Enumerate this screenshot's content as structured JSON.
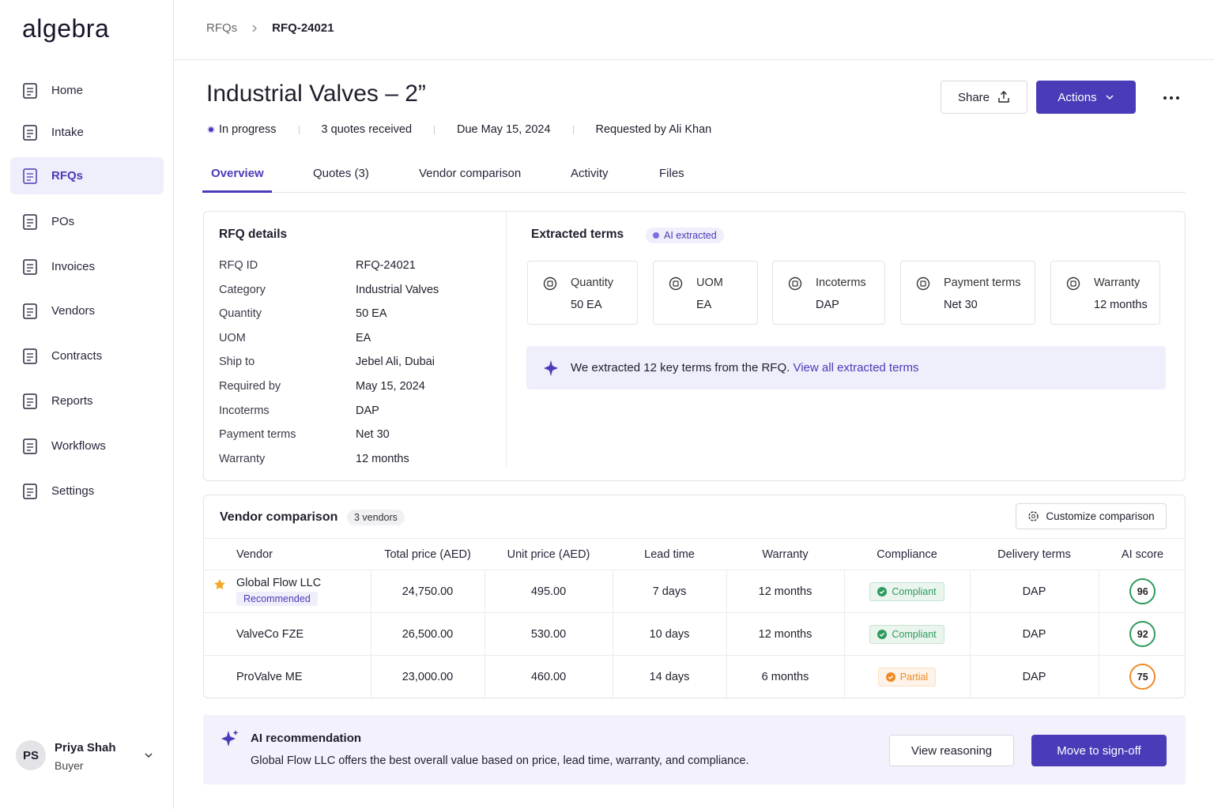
{
  "brand": "algebra",
  "nav": [
    "Home",
    "Intake",
    "RFQs",
    "POs",
    "Invoices",
    "Vendors",
    "Contracts",
    "Reports",
    "Workflows",
    "Settings"
  ],
  "user": {
    "initials": "PS",
    "name": "Priya Shah",
    "role": "Buyer"
  },
  "breadcrumb": [
    "RFQs",
    "RFQ-24021"
  ],
  "header": {
    "title": "Industrial Valves – 2”",
    "status": "In progress",
    "meta": [
      "3 quotes received",
      "Due May 15, 2024",
      "Requested by Ali Khan"
    ],
    "share": "Share",
    "actions": "Actions"
  },
  "tabs": [
    "Overview",
    "Quotes (3)",
    "Vendor comparison",
    "Activity",
    "Files"
  ],
  "rfq_details": {
    "title": "RFQ details",
    "rows": [
      [
        "RFQ ID",
        "RFQ-24021"
      ],
      [
        "Category",
        "Industrial Valves"
      ],
      [
        "Quantity",
        "50 EA"
      ],
      [
        "UOM",
        "EA"
      ],
      [
        "Ship to",
        "Jebel Ali, Dubai"
      ],
      [
        "Required by",
        "May 15, 2024"
      ],
      [
        "Incoterms",
        "DAP"
      ],
      [
        "Payment terms",
        "Net 30"
      ],
      [
        "Warranty",
        "12 months"
      ]
    ]
  },
  "extracted_terms": {
    "title": "Extracted terms",
    "badge": "AI extracted",
    "terms": [
      {
        "label": "Quantity",
        "value": "50 EA"
      },
      {
        "label": "UOM",
        "value": "EA"
      },
      {
        "label": "Incoterms",
        "value": "DAP"
      },
      {
        "label": "Payment terms",
        "value": "Net 30"
      },
      {
        "label": "Warranty",
        "value": "12 months"
      }
    ],
    "banner": {
      "text": "We extracted 12 key terms from the RFQ.",
      "link": "View all extracted terms"
    }
  },
  "vendor_comparison": {
    "title": "Vendor comparison",
    "count": "3 vendors",
    "button": "Customize comparison",
    "columns": [
      "Vendor",
      "Total price (AED)",
      "Unit price (AED)",
      "Lead time",
      "Warranty",
      "Compliance",
      "Delivery terms",
      "AI score"
    ],
    "rows": [
      {
        "cells": [
          "Global Flow LLC",
          "24,750.00",
          "495.00",
          "7 days",
          "12 months",
          "Compliant",
          "DAP",
          "96"
        ],
        "tag": "Recommended",
        "color": "#2e9a5b"
      },
      {
        "cells": [
          "ValveCo FZE",
          "26,500.00",
          "530.00",
          "10 days",
          "12 months",
          "Compliant",
          "DAP",
          "92"
        ],
        "color": "#2e9a5b"
      },
      {
        "cells": [
          "ProValve ME",
          "23,000.00",
          "460.00",
          "14 days",
          "6 months",
          "Partial",
          "DAP",
          "75"
        ],
        "color": "#f08a24"
      }
    ]
  },
  "ai_recommendation": {
    "title": "AI recommendation",
    "text": "Global Flow LLC offers the best overall value based on price, lead time, warranty, and compliance.",
    "secondary": "View reasoning",
    "primary": "Move to sign-off"
  }
}
